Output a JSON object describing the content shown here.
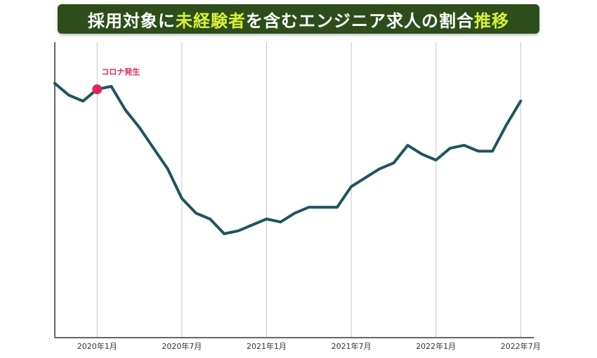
{
  "title": {
    "segments": [
      {
        "text": "採用対象に",
        "color": "#ffffff"
      },
      {
        "text": "未経験者",
        "color": "#d9f03a"
      },
      {
        "text": "を含むエンジニア求人の割合",
        "color": "#ffffff"
      },
      {
        "text": "推移",
        "color": "#d9f03a"
      }
    ],
    "background": "#2d4e1a"
  },
  "chart_data": {
    "type": "line",
    "title": "採用対象に未経験者を含むエンジニア求人の割合推移",
    "xlabel": "",
    "ylabel": "",
    "x_ticks": [
      "2020年1月",
      "2020年7月",
      "2021年1月",
      "2021年7月",
      "2022年1月",
      "2022年7月"
    ],
    "x_tick_index": [
      3,
      9,
      15,
      21,
      27,
      33
    ],
    "grid": "vertical",
    "y_axis_values_shown": false,
    "ylim": [
      0,
      100
    ],
    "series": [
      {
        "color": "#1e555c",
        "x": [
          "2019年10月",
          "2019年11月",
          "2019年12月",
          "2020年1月",
          "2020年2月",
          "2020年3月",
          "2020年4月",
          "2020年5月",
          "2020年6月",
          "2020年7月",
          "2020年8月",
          "2020年9月",
          "2020年10月",
          "2020年11月",
          "2020年12月",
          "2021年1月",
          "2021年2月",
          "2021年3月",
          "2021年4月",
          "2021年5月",
          "2021年6月",
          "2021年7月",
          "2021年8月",
          "2021年9月",
          "2021年10月",
          "2021年11月",
          "2021年12月",
          "2022年1月",
          "2022年2月",
          "2022年3月",
          "2022年4月",
          "2022年5月",
          "2022年6月",
          "2022年7月"
        ],
        "values": [
          86,
          82,
          80,
          84,
          85,
          77,
          71,
          64,
          57,
          47,
          42,
          40,
          35,
          36,
          38,
          40,
          39,
          42,
          44,
          44,
          44,
          51,
          54,
          57,
          59,
          65,
          62,
          60,
          64,
          65,
          63,
          63,
          72,
          80
        ]
      }
    ],
    "annotations": [
      {
        "text": "コロナ発生",
        "x": "2020年1月",
        "value": 84,
        "marker_color": "#e0245e"
      }
    ]
  }
}
